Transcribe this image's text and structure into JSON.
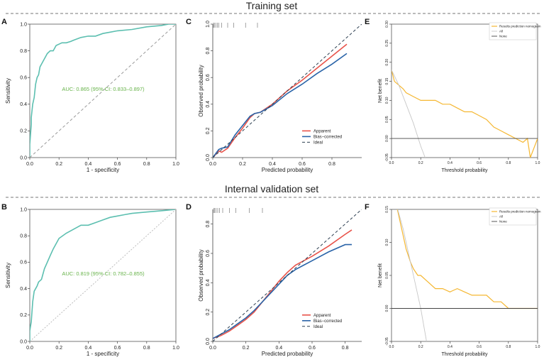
{
  "sections": {
    "training_title": "Training set",
    "validation_title": "Internal validation set"
  },
  "colors": {
    "roc": "#5cbfb0",
    "roc_text": "#67b34a",
    "apparent": "#e8534a",
    "bias": "#2a64a8",
    "ideal": "#2c3e50",
    "nomogram": "#f5b731",
    "all": "#c7c7c7",
    "none": "#444444"
  },
  "chart_data": [
    {
      "panel": "A",
      "type": "line",
      "xlabel": "1 - specificity",
      "ylabel": "Sensitivity",
      "xlim": [
        0,
        1
      ],
      "ylim": [
        0,
        1
      ],
      "xticks": [
        "0.0",
        "0.2",
        "0.4",
        "0.6",
        "0.8",
        "1.0"
      ],
      "yticks": [
        "0.0",
        "0.2",
        "0.4",
        "0.6",
        "0.8",
        "1.0"
      ],
      "annotation": "AUC: 0.865 (95% CI: 0.833–0.897)",
      "series": [
        {
          "name": "ROC",
          "style": "roc",
          "x": [
            0,
            0,
            0.01,
            0.01,
            0.02,
            0.03,
            0.04,
            0.05,
            0.06,
            0.07,
            0.08,
            0.1,
            0.12,
            0.14,
            0.16,
            0.18,
            0.2,
            0.22,
            0.25,
            0.28,
            0.3,
            0.35,
            0.4,
            0.45,
            0.5,
            0.55,
            0.6,
            0.7,
            0.8,
            0.9,
            0.95,
            1
          ],
          "y": [
            0,
            0.1,
            0.25,
            0.3,
            0.4,
            0.45,
            0.55,
            0.6,
            0.62,
            0.68,
            0.7,
            0.74,
            0.78,
            0.8,
            0.8,
            0.84,
            0.85,
            0.86,
            0.86,
            0.87,
            0.88,
            0.9,
            0.91,
            0.91,
            0.93,
            0.94,
            0.95,
            0.96,
            0.98,
            0.99,
            1,
            1
          ]
        },
        {
          "name": "Reference",
          "style": "ref_dashed",
          "x": [
            0,
            1
          ],
          "y": [
            0,
            1
          ]
        }
      ]
    },
    {
      "panel": "C",
      "type": "line",
      "xlabel": "Predicted probability",
      "ylabel": "Observed probability",
      "xlim": [
        0,
        1
      ],
      "ylim": [
        0,
        1
      ],
      "xticks": [
        "0.0",
        "0.2",
        "0.4",
        "0.6",
        "0.8"
      ],
      "yticks": [
        "0.0",
        "0.2",
        "0.4",
        "0.6",
        "0.8",
        "1.0"
      ],
      "legend": [
        "Apparent",
        "Bias−corrected",
        "Ideal"
      ],
      "legend_position": "bottom-right",
      "rug": "top",
      "series": [
        {
          "name": "Apparent",
          "style": "apparent",
          "x": [
            0,
            0.04,
            0.06,
            0.1,
            0.15,
            0.2,
            0.25,
            0.28,
            0.32,
            0.4,
            0.5,
            0.6,
            0.7,
            0.8,
            0.9
          ],
          "y": [
            0,
            0.05,
            0.04,
            0.07,
            0.15,
            0.22,
            0.3,
            0.33,
            0.34,
            0.4,
            0.5,
            0.58,
            0.67,
            0.76,
            0.85
          ]
        },
        {
          "name": "Bias−corrected",
          "style": "bias",
          "x": [
            0,
            0.04,
            0.06,
            0.1,
            0.15,
            0.2,
            0.25,
            0.28,
            0.32,
            0.4,
            0.5,
            0.6,
            0.7,
            0.8,
            0.9
          ],
          "y": [
            0,
            0.06,
            0.07,
            0.08,
            0.17,
            0.24,
            0.31,
            0.33,
            0.34,
            0.39,
            0.48,
            0.55,
            0.63,
            0.7,
            0.78
          ]
        },
        {
          "name": "Ideal",
          "style": "ideal_dashed",
          "x": [
            0,
            1
          ],
          "y": [
            0,
            1
          ]
        }
      ]
    },
    {
      "panel": "E",
      "type": "line",
      "xlabel": "Threshold probability",
      "ylabel": "Net benefit",
      "xlim": [
        0,
        1
      ],
      "ylim": [
        -0.05,
        0.3
      ],
      "xticks": [
        "0.0",
        "0.2",
        "0.4",
        "0.6",
        "0.8",
        "1.0"
      ],
      "yticks": [
        "-0.05",
        "0.00",
        "0.05",
        "0.10",
        "0.15",
        "0.20",
        "0.25",
        "0.30"
      ],
      "legend": [
        "Results prediction nomogram",
        "All",
        "None"
      ],
      "legend_position": "top-right",
      "series": [
        {
          "name": "Results prediction nomogram",
          "style": "nomogram",
          "x": [
            0,
            0.02,
            0.05,
            0.08,
            0.1,
            0.15,
            0.2,
            0.25,
            0.3,
            0.35,
            0.4,
            0.45,
            0.5,
            0.55,
            0.6,
            0.65,
            0.7,
            0.75,
            0.8,
            0.85,
            0.9,
            0.93,
            0.95,
            1
          ],
          "y": [
            0.18,
            0.15,
            0.14,
            0.13,
            0.12,
            0.11,
            0.1,
            0.1,
            0.1,
            0.09,
            0.09,
            0.08,
            0.07,
            0.07,
            0.06,
            0.05,
            0.03,
            0.02,
            0.01,
            0,
            -0.01,
            0,
            -0.05,
            0
          ]
        },
        {
          "name": "All",
          "style": "all",
          "x": [
            0,
            0.05,
            0.1,
            0.15,
            0.2,
            0.23
          ],
          "y": [
            0.18,
            0.14,
            0.09,
            0.04,
            -0.02,
            -0.05
          ]
        },
        {
          "name": "None",
          "style": "none",
          "x": [
            0,
            1
          ],
          "y": [
            0,
            0
          ]
        }
      ]
    },
    {
      "panel": "B",
      "type": "line",
      "xlabel": "1 - specificity",
      "ylabel": "Sensitivity",
      "xlim": [
        0,
        1
      ],
      "ylim": [
        0,
        1
      ],
      "xticks": [
        "0.0",
        "0.2",
        "0.4",
        "0.6",
        "0.8",
        "1.0"
      ],
      "yticks": [
        "0.0",
        "0.2",
        "0.4",
        "0.6",
        "0.8",
        "1.0"
      ],
      "annotation": "AUC: 0.819 (95% CI: 0.782–0.855)",
      "series": [
        {
          "name": "ROC",
          "style": "roc",
          "x": [
            0,
            0,
            0.01,
            0.02,
            0.03,
            0.05,
            0.06,
            0.08,
            0.1,
            0.12,
            0.14,
            0.16,
            0.18,
            0.2,
            0.25,
            0.3,
            0.35,
            0.4,
            0.45,
            0.5,
            0.55,
            0.6,
            0.65,
            0.7,
            0.8,
            0.9,
            1
          ],
          "y": [
            0,
            0.08,
            0.15,
            0.3,
            0.38,
            0.42,
            0.45,
            0.47,
            0.55,
            0.6,
            0.65,
            0.7,
            0.74,
            0.78,
            0.82,
            0.85,
            0.88,
            0.88,
            0.9,
            0.92,
            0.94,
            0.95,
            0.96,
            0.97,
            0.98,
            0.99,
            1
          ]
        },
        {
          "name": "Reference",
          "style": "ref_dotted",
          "x": [
            0,
            1
          ],
          "y": [
            0,
            1
          ]
        }
      ]
    },
    {
      "panel": "D",
      "type": "line",
      "xlabel": "Predicted probability",
      "ylabel": "Observed probability",
      "xlim": [
        0,
        0.9
      ],
      "ylim": [
        0,
        0.9
      ],
      "xticks": [
        "0.0",
        "0.2",
        "0.4",
        "0.6",
        "0.8"
      ],
      "yticks": [
        "0.0",
        "0.2",
        "0.4",
        "0.6",
        "0.8"
      ],
      "legend": [
        "Apparent",
        "Bias−corrected",
        "Ideal"
      ],
      "legend_position": "bottom-right",
      "rug": "top",
      "series": [
        {
          "name": "Apparent",
          "style": "apparent",
          "x": [
            0,
            0.05,
            0.1,
            0.15,
            0.2,
            0.25,
            0.3,
            0.35,
            0.4,
            0.45,
            0.5,
            0.55,
            0.6,
            0.7,
            0.8,
            0.84
          ],
          "y": [
            0.02,
            0.04,
            0.07,
            0.11,
            0.15,
            0.2,
            0.27,
            0.34,
            0.41,
            0.47,
            0.52,
            0.55,
            0.58,
            0.65,
            0.73,
            0.76
          ]
        },
        {
          "name": "Bias−corrected",
          "style": "bias",
          "x": [
            0,
            0.05,
            0.1,
            0.15,
            0.2,
            0.25,
            0.3,
            0.35,
            0.4,
            0.45,
            0.5,
            0.55,
            0.6,
            0.7,
            0.8,
            0.84
          ],
          "y": [
            0.02,
            0.05,
            0.08,
            0.12,
            0.16,
            0.21,
            0.27,
            0.33,
            0.39,
            0.45,
            0.49,
            0.52,
            0.55,
            0.61,
            0.66,
            0.66
          ]
        },
        {
          "name": "Ideal",
          "style": "ideal_dashed",
          "x": [
            0,
            1
          ],
          "y": [
            0,
            1
          ]
        }
      ]
    },
    {
      "panel": "F",
      "type": "line",
      "xlabel": "Threshold probability",
      "ylabel": "Net benefit",
      "xlim": [
        0,
        1
      ],
      "ylim": [
        -0.05,
        0.15
      ],
      "xticks": [
        "0.0",
        "0.2",
        "0.4",
        "0.6",
        "0.8",
        "1.0"
      ],
      "yticks": [
        "-0.05",
        "0.00",
        "0.05",
        "0.10",
        "0.15"
      ],
      "legend": [
        "Results prediction nomogram",
        "All",
        "None"
      ],
      "legend_position": "top-right",
      "series": [
        {
          "name": "Results prediction nomogram",
          "style": "nomogram",
          "x": [
            0.03,
            0.06,
            0.1,
            0.13,
            0.15,
            0.18,
            0.2,
            0.25,
            0.3,
            0.35,
            0.4,
            0.45,
            0.5,
            0.55,
            0.6,
            0.65,
            0.7,
            0.75,
            0.8,
            0.85,
            1
          ],
          "y": [
            0.16,
            0.13,
            0.09,
            0.07,
            0.06,
            0.05,
            0.05,
            0.04,
            0.03,
            0.03,
            0.025,
            0.03,
            0.025,
            0.02,
            0.02,
            0.02,
            0.01,
            0.01,
            0,
            0,
            0
          ]
        },
        {
          "name": "All",
          "style": "all",
          "x": [
            0.03,
            0.08,
            0.12,
            0.16,
            0.2,
            0.24
          ],
          "y": [
            0.16,
            0.12,
            0.08,
            0.04,
            0,
            -0.05
          ]
        },
        {
          "name": "None",
          "style": "none",
          "x": [
            0,
            1
          ],
          "y": [
            0,
            0
          ]
        }
      ]
    }
  ]
}
